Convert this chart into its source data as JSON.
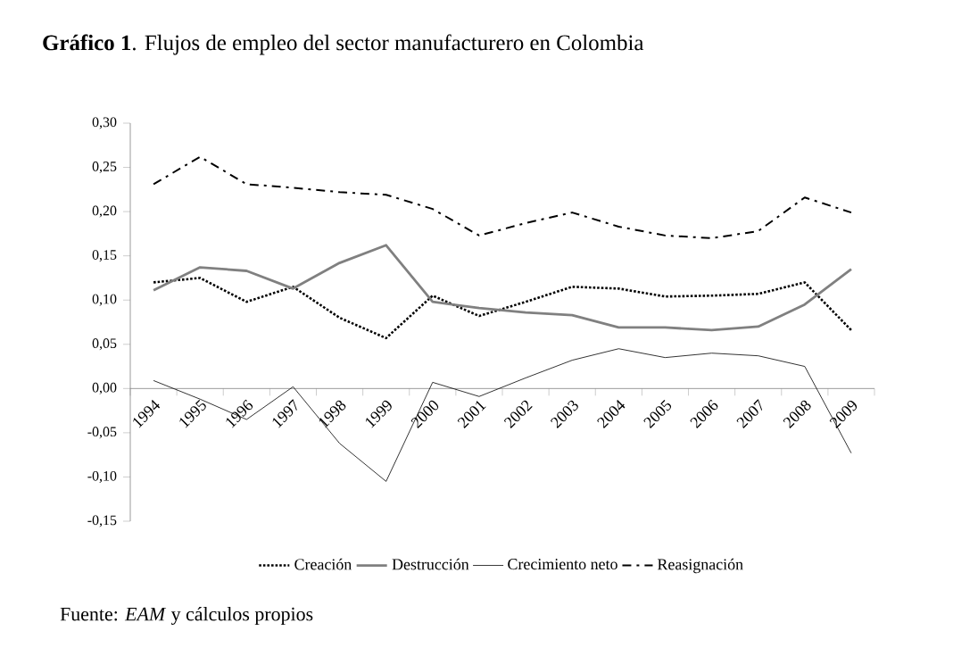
{
  "chart_data": {
    "type": "line",
    "title": "**Gráfico 1**. Flujos de empleo del sector manufacturero en Colombia",
    "annotations": [
      "Fuente: *EAM* y cálculos propios"
    ],
    "categories": [
      "1994",
      "1995",
      "1996",
      "1997",
      "1998",
      "1999",
      "2000",
      "2001",
      "2002",
      "2003",
      "2004",
      "2005",
      "2006",
      "2007",
      "2008",
      "2009"
    ],
    "series": [
      {
        "name": "Creación",
        "color": "#000000",
        "line_style": "dotted",
        "values": [
          0.12,
          0.125,
          0.098,
          0.115,
          0.08,
          0.057,
          0.105,
          0.082,
          0.098,
          0.115,
          0.113,
          0.104,
          0.105,
          0.107,
          0.12,
          0.066
        ]
      },
      {
        "name": "Destrucción",
        "color": "#808080",
        "line_style": "solid",
        "values": [
          0.111,
          0.137,
          0.133,
          0.113,
          0.142,
          0.162,
          0.098,
          0.091,
          0.086,
          0.083,
          0.069,
          0.069,
          0.066,
          0.07,
          0.095,
          0.135
        ]
      },
      {
        "name": "Crecimiento neto",
        "color": "#000000",
        "line_style": "solid",
        "values": [
          0.009,
          -0.012,
          -0.035,
          0.002,
          -0.062,
          -0.105,
          0.007,
          -0.009,
          0.012,
          0.032,
          0.045,
          0.035,
          0.04,
          0.037,
          0.025,
          -0.073
        ]
      },
      {
        "name": "Reasignación",
        "color": "#000000",
        "line_style": "dashdot",
        "values": [
          0.231,
          0.262,
          0.231,
          0.227,
          0.222,
          0.219,
          0.203,
          0.173,
          0.187,
          0.199,
          0.183,
          0.173,
          0.17,
          0.178,
          0.216,
          0.199
        ]
      }
    ],
    "ylim": [
      -0.15,
      0.3
    ],
    "yticks": [
      {
        "value": -0.15,
        "label": "-0,15"
      },
      {
        "value": -0.1,
        "label": "-0,10"
      },
      {
        "value": -0.05,
        "label": "-0,05"
      },
      {
        "value": 0,
        "label": "0,00"
      },
      {
        "value": 0.05,
        "label": "0,05"
      },
      {
        "value": 0.1,
        "label": "0,10"
      },
      {
        "value": 0.15,
        "label": "0,15"
      },
      {
        "value": 0.2,
        "label": "0,20"
      },
      {
        "value": 0.25,
        "label": "0,25"
      },
      {
        "value": 0.3,
        "label": "0,30"
      }
    ],
    "grid": false,
    "legend": "bottom",
    "marker": "none"
  }
}
